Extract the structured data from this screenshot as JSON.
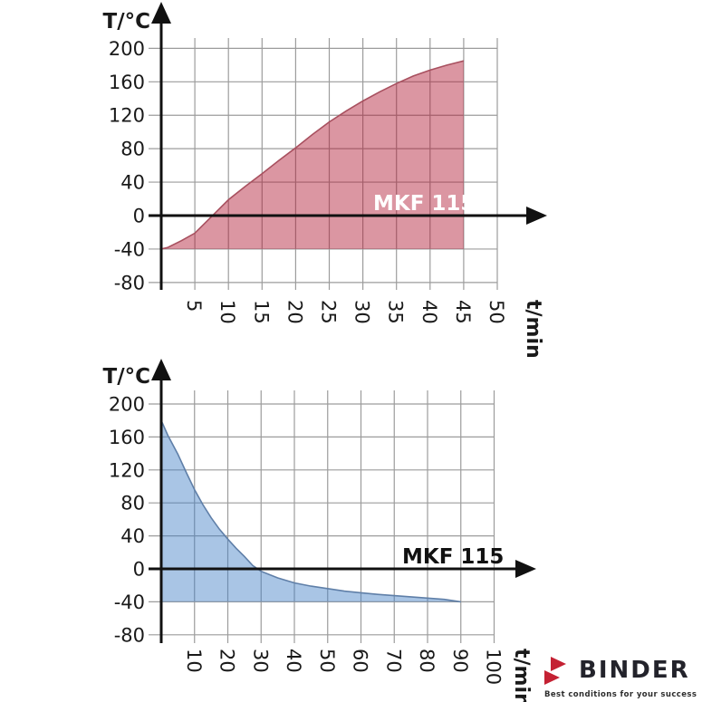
{
  "page": {
    "background": "#ffffff"
  },
  "style": {
    "grid_color": "#9c9c9c",
    "axis_color": "#111111",
    "tick_color": "#1a1a1a"
  },
  "chart_data": [
    {
      "id": "heating",
      "type": "area",
      "series_label": "MKF 115",
      "y_axis_title": "T/°C",
      "x_axis_title": "t/min",
      "x_ticks": [
        5,
        10,
        15,
        20,
        25,
        30,
        35,
        40,
        45,
        50
      ],
      "y_ticks": [
        200,
        160,
        120,
        80,
        40,
        0,
        -40,
        -80
      ],
      "xlim": [
        0,
        50
      ],
      "ylim": [
        -80,
        200
      ],
      "baseline": -40,
      "grid": true,
      "points": [
        [
          0,
          -40
        ],
        [
          1,
          -38
        ],
        [
          3,
          -30
        ],
        [
          5,
          -21
        ],
        [
          7.5,
          -1
        ],
        [
          10,
          19
        ],
        [
          12.5,
          35
        ],
        [
          15,
          50
        ],
        [
          17.5,
          66
        ],
        [
          20,
          81
        ],
        [
          22.5,
          97
        ],
        [
          25,
          112
        ],
        [
          27.5,
          125
        ],
        [
          30,
          137
        ],
        [
          32.5,
          148
        ],
        [
          35,
          158
        ],
        [
          37.5,
          167
        ],
        [
          40,
          174
        ],
        [
          42.5,
          180
        ],
        [
          45,
          185
        ]
      ],
      "colors": {
        "fill": "rgba(176,22,49,0.45)",
        "edge": "#a8505f",
        "series_label": "#ffffff"
      }
    },
    {
      "id": "cooling",
      "type": "area",
      "series_label": "MKF 115",
      "y_axis_title": "T/°C",
      "x_axis_title": "t/min",
      "x_ticks": [
        10,
        20,
        30,
        40,
        50,
        60,
        70,
        80,
        90,
        100
      ],
      "y_ticks": [
        200,
        160,
        120,
        80,
        40,
        0,
        -40,
        -80
      ],
      "xlim": [
        0,
        100
      ],
      "ylim": [
        -80,
        200
      ],
      "baseline": -40,
      "grid": true,
      "points": [
        [
          0,
          180
        ],
        [
          2,
          162
        ],
        [
          5,
          139
        ],
        [
          7.5,
          117
        ],
        [
          10,
          96
        ],
        [
          12.5,
          78
        ],
        [
          15,
          62
        ],
        [
          17.5,
          48
        ],
        [
          20,
          36
        ],
        [
          22.5,
          25
        ],
        [
          25,
          15
        ],
        [
          27.5,
          4
        ],
        [
          30,
          -3
        ],
        [
          35,
          -11
        ],
        [
          40,
          -17
        ],
        [
          45,
          -21
        ],
        [
          50,
          -24
        ],
        [
          55,
          -27
        ],
        [
          60,
          -29
        ],
        [
          65,
          -31
        ],
        [
          70,
          -32.5
        ],
        [
          75,
          -34
        ],
        [
          80,
          -35.5
        ],
        [
          85,
          -37
        ],
        [
          90,
          -40
        ]
      ],
      "colors": {
        "fill": "rgba(64,126,197,0.45)",
        "edge": "#5f7fa8",
        "series_label": "#111111"
      }
    }
  ],
  "logo": {
    "brand": "BINDER",
    "tagline": "Best conditions for your success",
    "accent_color": "#c42133",
    "brand_color": "#23232b",
    "tagline_color": "#2e2e2e"
  }
}
